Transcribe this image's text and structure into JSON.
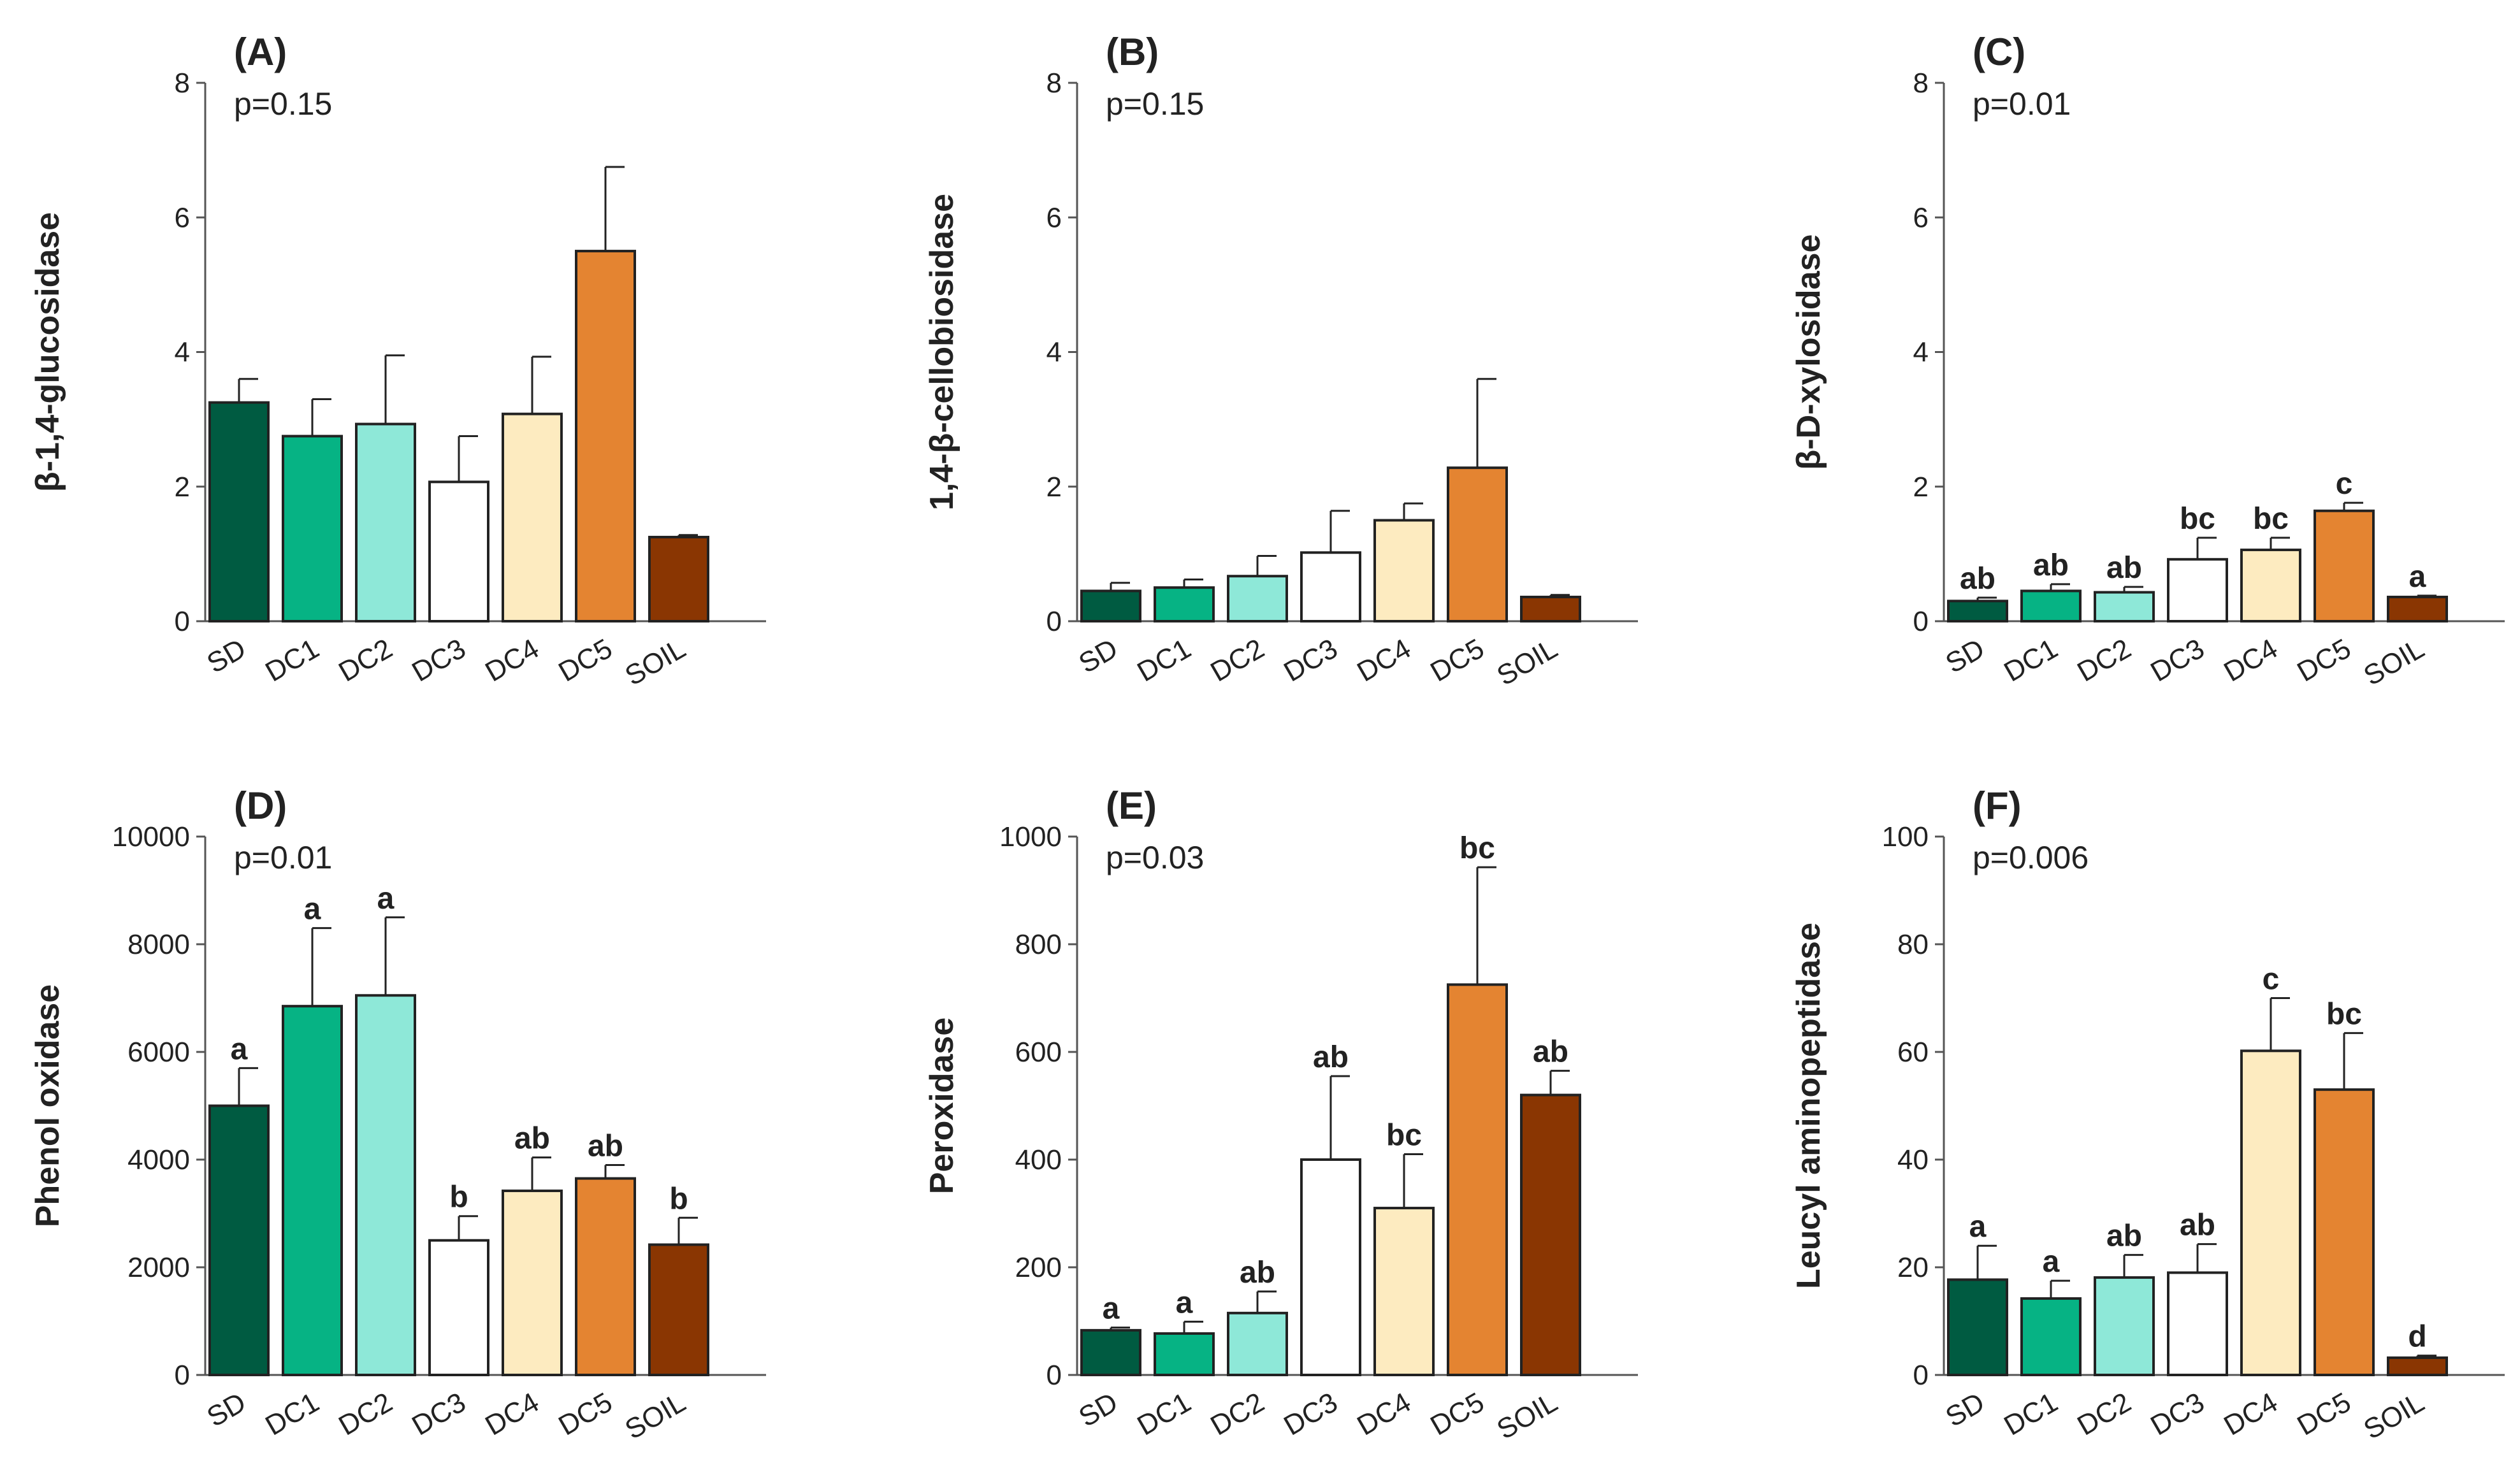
{
  "chart_data": [
    {
      "type": "bar",
      "panel": "(A)",
      "pvalue": "p=0.15",
      "ylabel": "β-1,4-glucosidase",
      "categories": [
        "SD",
        "DC1",
        "DC2",
        "DC3",
        "DC4",
        "DC5",
        "SOIL"
      ],
      "values": [
        3.25,
        2.75,
        2.93,
        2.07,
        3.08,
        5.5,
        1.25
      ],
      "errors": [
        0.35,
        0.55,
        1.02,
        0.68,
        0.85,
        1.25,
        0.03
      ],
      "letters": [
        "",
        "",
        "",
        "",
        "",
        "",
        ""
      ],
      "ylim": [
        0,
        8
      ],
      "yticks": [
        0,
        2,
        4,
        6,
        8
      ],
      "ytick_labels": [
        "0",
        "2",
        "4",
        "6",
        "8"
      ]
    },
    {
      "type": "bar",
      "panel": "(B)",
      "pvalue": "p=0.15",
      "ylabel": "1,4-β-cellobiosidase",
      "categories": [
        "SD",
        "DC1",
        "DC2",
        "DC3",
        "DC4",
        "DC5",
        "SOIL"
      ],
      "values": [
        0.45,
        0.5,
        0.67,
        1.02,
        1.5,
        2.28,
        0.36
      ],
      "errors": [
        0.12,
        0.12,
        0.3,
        0.62,
        0.25,
        1.32,
        0.03
      ],
      "letters": [
        "",
        "",
        "",
        "",
        "",
        "",
        ""
      ],
      "ylim": [
        0,
        8
      ],
      "yticks": [
        0,
        2,
        4,
        6,
        8
      ],
      "ytick_labels": [
        "0",
        "2",
        "4",
        "6",
        "8"
      ]
    },
    {
      "type": "bar",
      "panel": "(C)",
      "pvalue": "p=0.01",
      "ylabel": "β-D-xylosidase",
      "categories": [
        "SD",
        "DC1",
        "DC2",
        "DC3",
        "DC4",
        "DC5",
        "SOIL"
      ],
      "values": [
        0.3,
        0.45,
        0.43,
        0.92,
        1.06,
        1.64,
        0.36
      ],
      "errors": [
        0.05,
        0.1,
        0.08,
        0.32,
        0.18,
        0.12,
        0.02
      ],
      "letters": [
        "ab",
        "ab",
        "ab",
        "bc",
        "bc",
        "c",
        "a"
      ],
      "ylim": [
        0,
        8
      ],
      "yticks": [
        0,
        2,
        4,
        6,
        8
      ],
      "ytick_labels": [
        "0",
        "2",
        "4",
        "6",
        "8"
      ]
    },
    {
      "type": "bar",
      "panel": "(D)",
      "pvalue": "p=0.01",
      "ylabel": "Phenol oxidase",
      "categories": [
        "SD",
        "DC1",
        "DC2",
        "DC3",
        "DC4",
        "DC5",
        "SOIL"
      ],
      "values": [
        5000,
        6850,
        7050,
        2500,
        3420,
        3650,
        2420
      ],
      "errors": [
        700,
        1450,
        1450,
        450,
        620,
        250,
        500
      ],
      "letters": [
        "a",
        "a",
        "a",
        "b",
        "ab",
        "ab",
        "b"
      ],
      "ylim": [
        0,
        10000
      ],
      "yticks": [
        0,
        2000,
        4000,
        6000,
        8000,
        10000
      ],
      "ytick_labels": [
        "0",
        "2000",
        "4000",
        "6000",
        "8000",
        "10000"
      ]
    },
    {
      "type": "bar",
      "panel": "(E)",
      "pvalue": "p=0.03",
      "ylabel": "Peroxidase",
      "categories": [
        "SD",
        "DC1",
        "DC2",
        "DC3",
        "DC4",
        "DC5",
        "SOIL"
      ],
      "values": [
        83,
        77,
        115,
        400,
        310,
        725,
        520
      ],
      "errors": [
        5,
        22,
        40,
        155,
        100,
        218,
        45
      ],
      "letters": [
        "a",
        "a",
        "ab",
        "ab",
        "bc",
        "bc",
        "ab"
      ],
      "ylim": [
        0,
        1000
      ],
      "yticks": [
        0,
        200,
        400,
        600,
        800,
        1000
      ],
      "ytick_labels": [
        "0",
        "200",
        "400",
        "600",
        "800",
        "1000"
      ]
    },
    {
      "type": "bar",
      "panel": "(F)",
      "pvalue": "p=0.006",
      "ylabel": "Leucyl aminopeptidase",
      "categories": [
        "SD",
        "DC1",
        "DC2",
        "DC3",
        "DC4",
        "DC5",
        "SOIL"
      ],
      "values": [
        17.7,
        14.2,
        18.1,
        19,
        60.2,
        53,
        3.2
      ],
      "errors": [
        6.3,
        3.3,
        4.2,
        5.3,
        9.8,
        10.5,
        0.4
      ],
      "letters": [
        "a",
        "a",
        "ab",
        "ab",
        "c",
        "bc",
        "d"
      ],
      "ylim": [
        0,
        100
      ],
      "yticks": [
        0,
        20,
        40,
        60,
        80,
        100
      ],
      "ytick_labels": [
        "0",
        "20",
        "40",
        "60",
        "80",
        "100"
      ]
    }
  ],
  "colors": {
    "bars": [
      "#005b41",
      "#06b384",
      "#8ee8d8",
      "#ffffff",
      "#fdebc0",
      "#e48431",
      "#8a3602"
    ],
    "stroke": "#222222",
    "axis": "#555555"
  }
}
